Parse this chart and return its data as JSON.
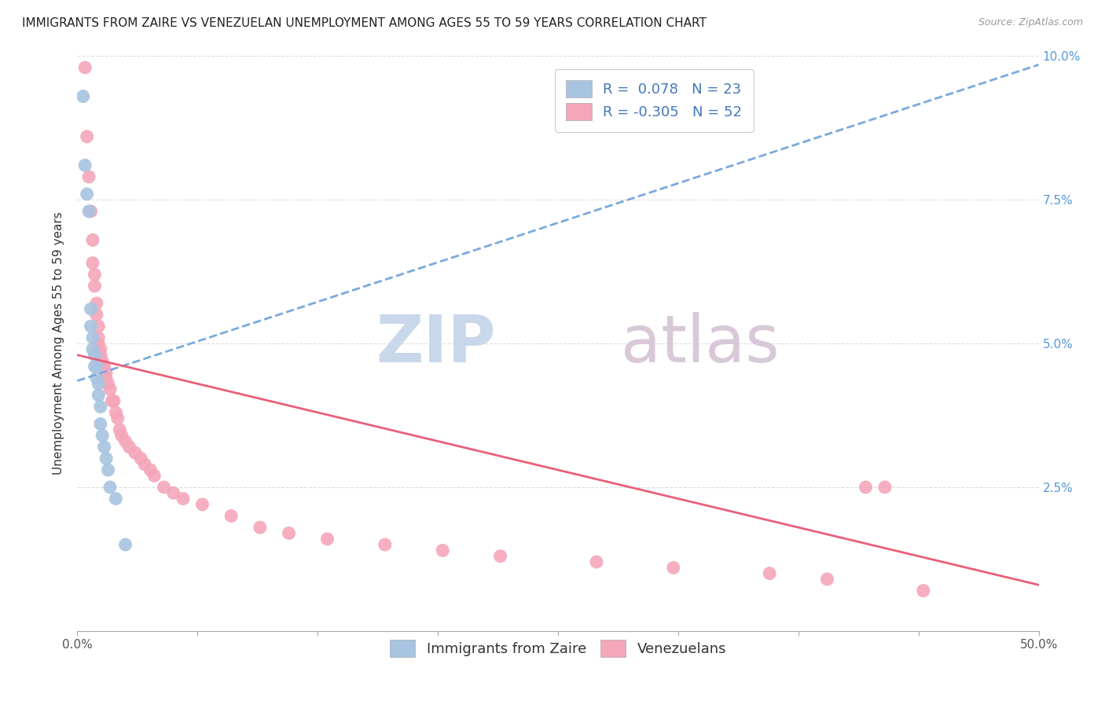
{
  "title": "IMMIGRANTS FROM ZAIRE VS VENEZUELAN UNEMPLOYMENT AMONG AGES 55 TO 59 YEARS CORRELATION CHART",
  "source": "Source: ZipAtlas.com",
  "ylabel": "Unemployment Among Ages 55 to 59 years",
  "xlim": [
    0,
    0.5
  ],
  "ylim": [
    0,
    0.1
  ],
  "xtick_left_label": "0.0%",
  "xtick_right_label": "50.0%",
  "ytick_labels_right": [
    "",
    "2.5%",
    "5.0%",
    "7.5%",
    "10.0%"
  ],
  "legend_r1": "R =  0.078",
  "legend_n1": "N = 23",
  "legend_r2": "R = -0.305",
  "legend_n2": "N = 52",
  "blue_scatter_color": "#a8c4e0",
  "pink_scatter_color": "#f4a7b9",
  "blue_line_color": "#7aaadd",
  "pink_line_color": "#e8607a",
  "grid_color": "#dddddd",
  "background_color": "#ffffff",
  "title_fontsize": 11,
  "axis_label_fontsize": 11,
  "tick_fontsize": 11,
  "legend_fontsize": 13,
  "watermark_zip_color": "#c8d8ea",
  "watermark_atlas_color": "#d8c8d8",
  "watermark_fontsize": 60,
  "zaire_x": [
    0.003,
    0.004,
    0.005,
    0.006,
    0.007,
    0.007,
    0.008,
    0.008,
    0.009,
    0.009,
    0.01,
    0.01,
    0.011,
    0.011,
    0.012,
    0.012,
    0.013,
    0.014,
    0.015,
    0.016,
    0.017,
    0.02,
    0.025
  ],
  "zaire_y": [
    0.093,
    0.081,
    0.076,
    0.073,
    0.056,
    0.053,
    0.051,
    0.049,
    0.048,
    0.046,
    0.046,
    0.044,
    0.043,
    0.041,
    0.039,
    0.036,
    0.034,
    0.032,
    0.03,
    0.028,
    0.025,
    0.023,
    0.015
  ],
  "venezuelan_x": [
    0.004,
    0.005,
    0.006,
    0.007,
    0.008,
    0.008,
    0.009,
    0.009,
    0.01,
    0.01,
    0.011,
    0.011,
    0.011,
    0.012,
    0.012,
    0.013,
    0.014,
    0.015,
    0.015,
    0.016,
    0.017,
    0.018,
    0.019,
    0.02,
    0.021,
    0.022,
    0.023,
    0.025,
    0.027,
    0.03,
    0.033,
    0.035,
    0.038,
    0.04,
    0.045,
    0.05,
    0.055,
    0.065,
    0.08,
    0.095,
    0.11,
    0.13,
    0.16,
    0.19,
    0.22,
    0.27,
    0.31,
    0.36,
    0.39,
    0.41,
    0.42,
    0.44
  ],
  "venezuelan_y": [
    0.098,
    0.086,
    0.079,
    0.073,
    0.068,
    0.064,
    0.062,
    0.06,
    0.057,
    0.055,
    0.053,
    0.051,
    0.05,
    0.049,
    0.048,
    0.047,
    0.046,
    0.045,
    0.044,
    0.043,
    0.042,
    0.04,
    0.04,
    0.038,
    0.037,
    0.035,
    0.034,
    0.033,
    0.032,
    0.031,
    0.03,
    0.029,
    0.028,
    0.027,
    0.025,
    0.024,
    0.023,
    0.022,
    0.02,
    0.018,
    0.017,
    0.016,
    0.015,
    0.014,
    0.013,
    0.012,
    0.011,
    0.01,
    0.009,
    0.025,
    0.025,
    0.007
  ],
  "blue_trendline_x0": 0.0,
  "blue_trendline_y0": 0.0435,
  "blue_trendline_x1": 0.5,
  "blue_trendline_y1": 0.0985,
  "pink_trendline_x0": 0.0,
  "pink_trendline_y0": 0.048,
  "pink_trendline_x1": 0.5,
  "pink_trendline_y1": 0.008
}
